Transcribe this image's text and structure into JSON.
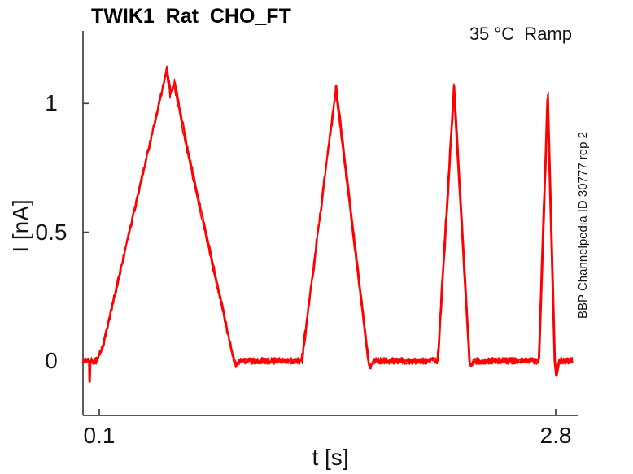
{
  "chart_data": {
    "type": "line",
    "title": "TWIK1  Rat  CHO_FT",
    "corner_annotation": "35 °C  Ramp",
    "side_annotation": "BBP Channelpedia ID 30777 rep 2",
    "xlabel": "t [s]",
    "ylabel": "I [nA]",
    "xlim": [
      0.0037,
      2.93
    ],
    "ylim": [
      -0.212,
      1.282
    ],
    "x_ticks": [
      {
        "v": 0.1,
        "label": "0.1"
      },
      {
        "v": 2.8,
        "label": "2.8"
      }
    ],
    "y_ticks": [
      {
        "v": 0,
        "label": "0"
      },
      {
        "v": 0.5,
        "label": "0.5"
      },
      {
        "v": 1,
        "label": "1"
      }
    ],
    "grid": false,
    "legend": false,
    "colors": {
      "trace": "#ff0000",
      "axis": "#404040",
      "text": "#141414",
      "background": "#ffffff"
    },
    "trace": {
      "units": {
        "x": "s",
        "y": "nA"
      },
      "n_sweeps": 3,
      "sweep_amplitude_factors": [
        1.0,
        0.995,
        0.986
      ],
      "sweep_time_offsets_s": [
        0,
        0.004,
        -0.003
      ],
      "noise_seed": 42,
      "sample_dt_s": 0.0042,
      "keypoints_t_I_noise": [
        [
          0.004,
          0,
          0.013
        ],
        [
          0.04,
          0,
          0.013
        ],
        [
          0.0425,
          -0.088,
          0.003
        ],
        [
          0.046,
          0,
          0.013
        ],
        [
          0.082,
          0,
          0.012
        ],
        [
          0.12,
          0.055,
          0.008
        ],
        [
          0.5,
          1.14,
          0.01
        ],
        [
          0.522,
          1.044,
          0.009
        ],
        [
          0.545,
          1.085,
          0.008
        ],
        [
          0.62,
          0.83,
          0.008
        ],
        [
          0.894,
          0.008,
          0.009
        ],
        [
          0.908,
          -0.018,
          0.01
        ],
        [
          0.93,
          0.0,
          0.013
        ],
        [
          1.298,
          0.0,
          0.013
        ],
        [
          1.5,
          1.07,
          0.006
        ],
        [
          1.692,
          0.0,
          0.007
        ],
        [
          1.703,
          -0.028,
          0.006
        ],
        [
          1.72,
          0.0,
          0.013
        ],
        [
          2.102,
          0.0,
          0.013
        ],
        [
          2.198,
          1.07,
          0.005
        ],
        [
          2.29,
          0.0,
          0.006
        ],
        [
          2.299,
          -0.02,
          0.006
        ],
        [
          2.315,
          0.0,
          0.013
        ],
        [
          2.7,
          0.0,
          0.013
        ],
        [
          2.752,
          1.038,
          0.004
        ],
        [
          2.794,
          0.0,
          0.004
        ],
        [
          2.803,
          -0.062,
          0.003
        ],
        [
          2.82,
          0.0,
          0.013
        ],
        [
          2.896,
          0.0,
          0.013
        ]
      ]
    }
  }
}
